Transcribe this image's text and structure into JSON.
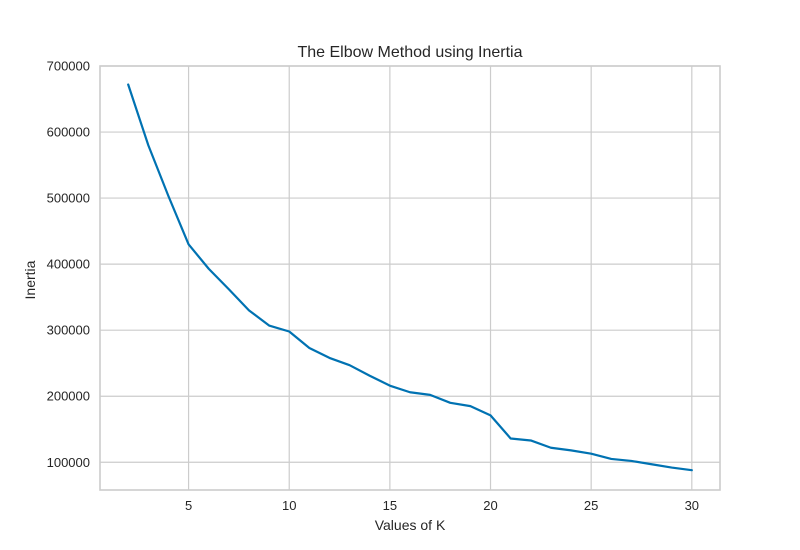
{
  "chart_data": {
    "type": "line",
    "title": "The Elbow Method using Inertia",
    "xlabel": "Values of K",
    "ylabel": "Inertia",
    "xlim": [
      0.6,
      31.4
    ],
    "ylim": [
      58000,
      700000
    ],
    "x_ticks": [
      5,
      10,
      15,
      20,
      25,
      30
    ],
    "y_ticks": [
      100000,
      200000,
      300000,
      400000,
      500000,
      600000,
      700000
    ],
    "grid": true,
    "series": [
      {
        "name": "Inertia",
        "color": "#0072b2",
        "x": [
          2,
          3,
          4,
          5,
          6,
          7,
          8,
          9,
          10,
          11,
          12,
          13,
          14,
          15,
          16,
          17,
          18,
          19,
          20,
          21,
          22,
          23,
          24,
          25,
          26,
          27,
          28,
          29,
          30
        ],
        "values": [
          672000,
          580000,
          503000,
          430000,
          393000,
          362000,
          330000,
          307000,
          298000,
          273000,
          258000,
          247000,
          231000,
          216000,
          206000,
          202000,
          190000,
          185000,
          171000,
          136000,
          133000,
          122000,
          118000,
          113000,
          105000,
          102000,
          97000,
          92000,
          88000
        ]
      }
    ]
  }
}
